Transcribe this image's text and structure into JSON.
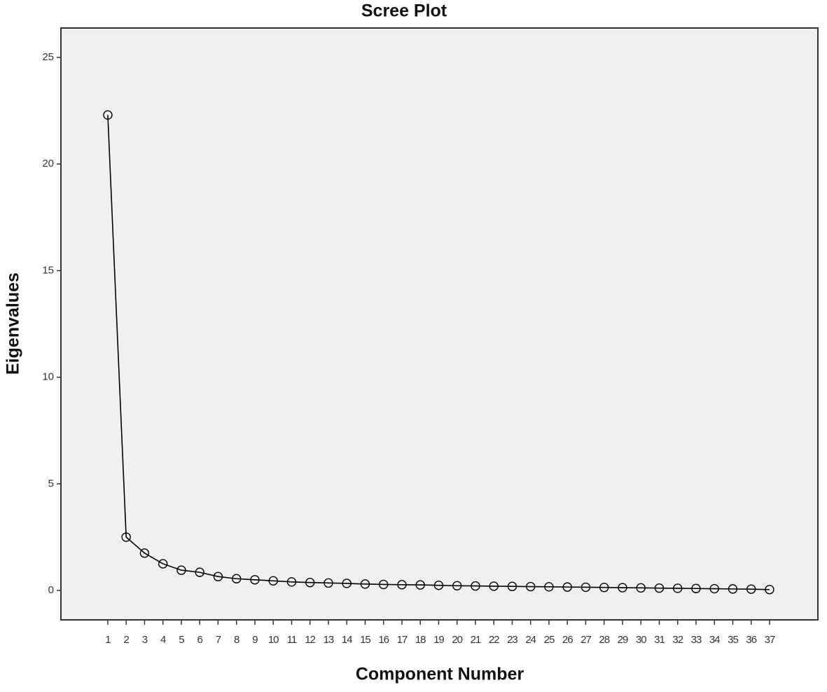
{
  "chart_data": {
    "type": "line",
    "title": "Scree Plot",
    "x_label": "Component Number",
    "y_label": "Eigenvalues",
    "x": [
      1,
      2,
      3,
      4,
      5,
      6,
      7,
      8,
      9,
      10,
      11,
      12,
      13,
      14,
      15,
      16,
      17,
      18,
      19,
      20,
      21,
      22,
      23,
      24,
      25,
      26,
      27,
      28,
      29,
      30,
      31,
      32,
      33,
      34,
      35,
      36,
      37
    ],
    "series": [
      {
        "color": "#000000",
        "values": [
          22.3,
          2.5,
          1.75,
          1.25,
          0.95,
          0.85,
          0.65,
          0.55,
          0.5,
          0.45,
          0.4,
          0.37,
          0.35,
          0.33,
          0.3,
          0.28,
          0.27,
          0.26,
          0.24,
          0.22,
          0.21,
          0.2,
          0.19,
          0.18,
          0.17,
          0.16,
          0.15,
          0.14,
          0.13,
          0.12,
          0.11,
          0.1,
          0.09,
          0.08,
          0.07,
          0.06,
          0.04
        ]
      }
    ],
    "xlim": [
      -1.55,
      39.63
    ],
    "ylim": [
      -1.38,
      26.38
    ],
    "xticks": [
      1,
      2,
      3,
      4,
      5,
      6,
      7,
      8,
      9,
      10,
      11,
      12,
      13,
      14,
      15,
      16,
      17,
      18,
      19,
      20,
      21,
      22,
      23,
      24,
      25,
      26,
      27,
      28,
      29,
      30,
      31,
      32,
      33,
      34,
      35,
      36,
      37
    ],
    "yticks": [
      0,
      5,
      10,
      15,
      20,
      25
    ],
    "grid": false,
    "background": "#f0f0f0"
  }
}
